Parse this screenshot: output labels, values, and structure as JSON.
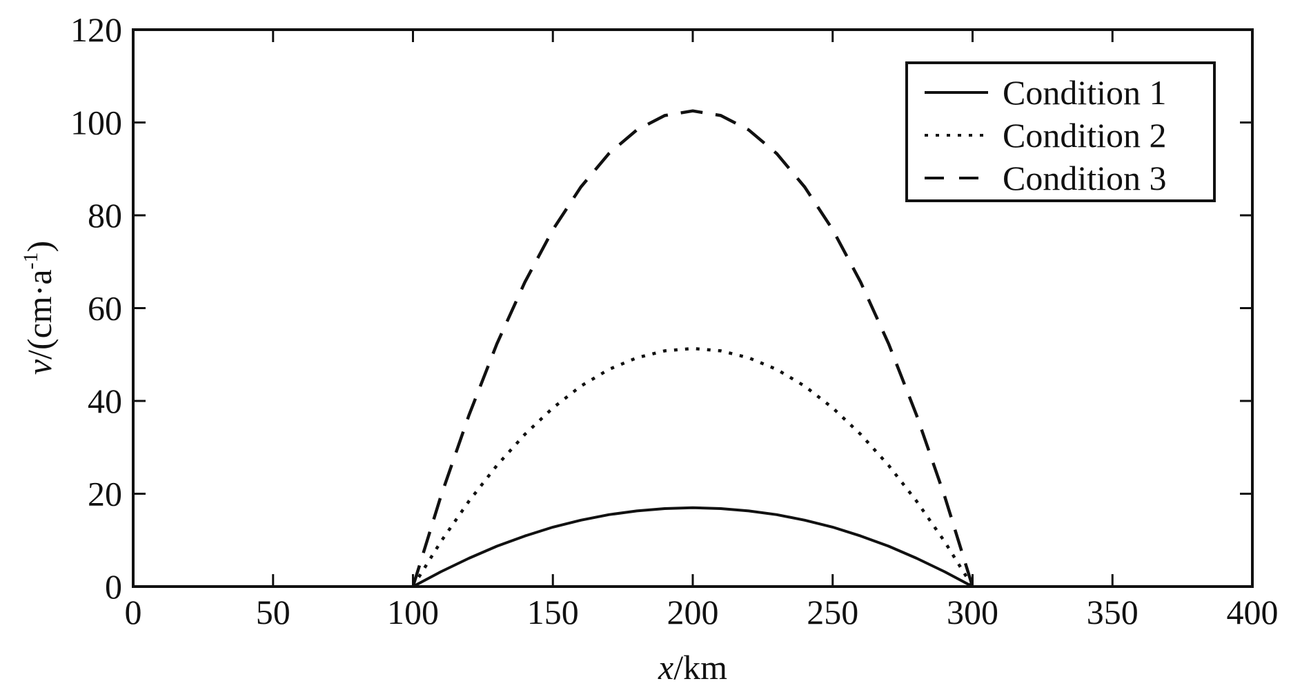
{
  "chart_data": {
    "type": "line",
    "xlabel": {
      "var": "x",
      "unit": "/km"
    },
    "ylabel": {
      "var": "v",
      "unit_pre": "/(cm·a",
      "unit_sup": "-1",
      "unit_post": ")"
    },
    "xlim": [
      0,
      400
    ],
    "ylim": [
      0,
      120
    ],
    "xticks": [
      0,
      50,
      100,
      150,
      200,
      250,
      300,
      350,
      400
    ],
    "yticks": [
      0,
      20,
      40,
      60,
      80,
      100,
      120
    ],
    "grid": false,
    "legend_position": "top-right",
    "colors": {
      "line": "#111111",
      "frame": "#111111"
    },
    "series": [
      {
        "name": "Condition 1",
        "style": "solid",
        "x": [
          100,
          110,
          120,
          130,
          140,
          150,
          160,
          170,
          180,
          190,
          200,
          210,
          220,
          230,
          240,
          250,
          260,
          270,
          280,
          290,
          300
        ],
        "y": [
          0.0,
          3.2,
          6.1,
          8.7,
          10.9,
          12.8,
          14.3,
          15.5,
          16.3,
          16.8,
          17.0,
          16.8,
          16.3,
          15.5,
          14.3,
          12.8,
          10.9,
          8.7,
          6.1,
          3.2,
          0.0
        ]
      },
      {
        "name": "Condition 2",
        "style": "dotted",
        "x": [
          100,
          110,
          120,
          130,
          140,
          150,
          160,
          170,
          180,
          190,
          200,
          210,
          220,
          230,
          240,
          250,
          260,
          270,
          280,
          290,
          300
        ],
        "y": [
          0.0,
          9.7,
          18.4,
          26.1,
          32.8,
          38.5,
          43.2,
          46.8,
          49.3,
          50.8,
          51.3,
          50.8,
          49.3,
          46.8,
          43.2,
          38.5,
          32.8,
          26.1,
          18.4,
          9.7,
          0.0
        ]
      },
      {
        "name": "Condition 3",
        "style": "dashed",
        "x": [
          100,
          110,
          120,
          130,
          140,
          150,
          160,
          170,
          180,
          190,
          200,
          210,
          220,
          230,
          240,
          250,
          260,
          270,
          280,
          290,
          300
        ],
        "y": [
          0.0,
          19.5,
          36.9,
          52.3,
          65.6,
          76.9,
          86.1,
          93.3,
          98.4,
          101.5,
          102.5,
          101.5,
          98.4,
          93.3,
          86.1,
          76.9,
          65.6,
          52.3,
          36.9,
          19.5,
          0.0
        ]
      }
    ]
  }
}
